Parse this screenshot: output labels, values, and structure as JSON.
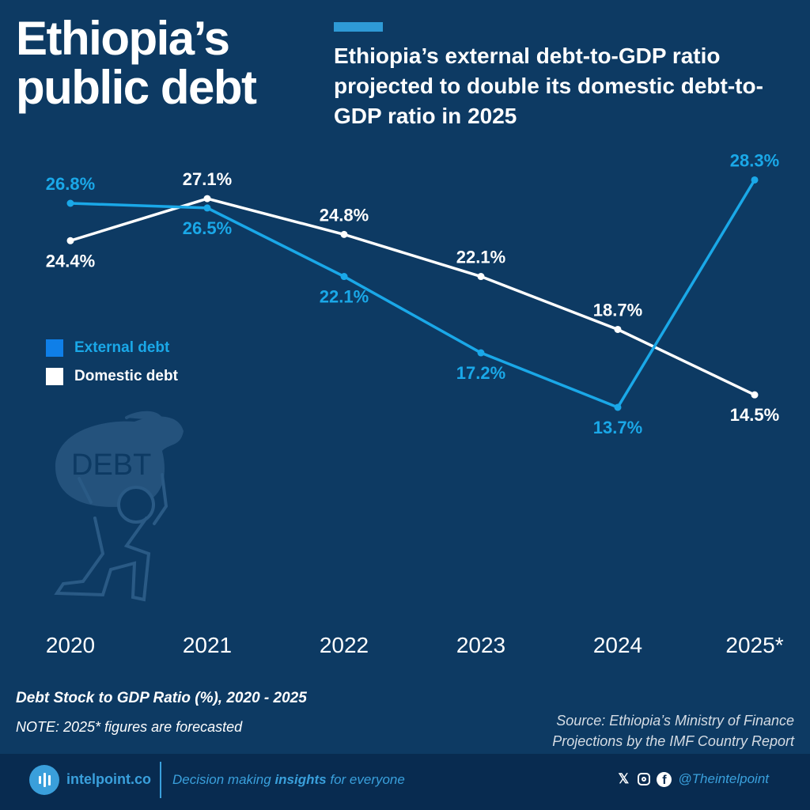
{
  "header": {
    "title_line1": "Ethiopia’s",
    "title_line2": "public debt",
    "subtitle": "Ethiopia’s external debt-to-GDP ratio projected to double its domestic debt-to-GDP ratio in 2025"
  },
  "colors": {
    "background": "#0d3a63",
    "external": "#1aa8e8",
    "domestic": "#ffffff",
    "accent": "#2e9ad6"
  },
  "chart_data": {
    "type": "line",
    "categories": [
      "2020",
      "2021",
      "2022",
      "2023",
      "2024",
      "2025*"
    ],
    "series": [
      {
        "name": "External debt",
        "values": [
          26.8,
          26.5,
          22.1,
          17.2,
          13.7,
          28.3
        ],
        "labels": [
          "26.8%",
          "26.5%",
          "22.1%",
          "17.2%",
          "13.7%",
          "28.3%"
        ],
        "color": "#1aa8e8"
      },
      {
        "name": "Domestic debt",
        "values": [
          24.4,
          27.1,
          24.8,
          22.1,
          18.7,
          14.5
        ],
        "labels": [
          "24.4%",
          "27.1%",
          "24.8%",
          "22.1%",
          "18.7%",
          "14.5%"
        ],
        "color": "#ffffff"
      }
    ],
    "legend_position": "left",
    "grid": false,
    "unit": "%"
  },
  "illustration": {
    "icon": "debt-bag-person-icon",
    "text": "DEBT"
  },
  "caption": "Debt Stock to GDP Ratio (%), 2020 - 2025",
  "note": "NOTE: 2025* figures are forecasted",
  "source_line1": "Source: Ethiopia’s Ministry of Finance",
  "source_line2": "Projections by the IMF Country Report",
  "footer": {
    "brand": "intelpoint.co",
    "tagline_pre": "Decision making ",
    "tagline_bold": "insights",
    "tagline_post": " for everyone",
    "handle": "@Theintelpoint",
    "icons": [
      "x-icon",
      "instagram-icon",
      "facebook-icon"
    ]
  }
}
